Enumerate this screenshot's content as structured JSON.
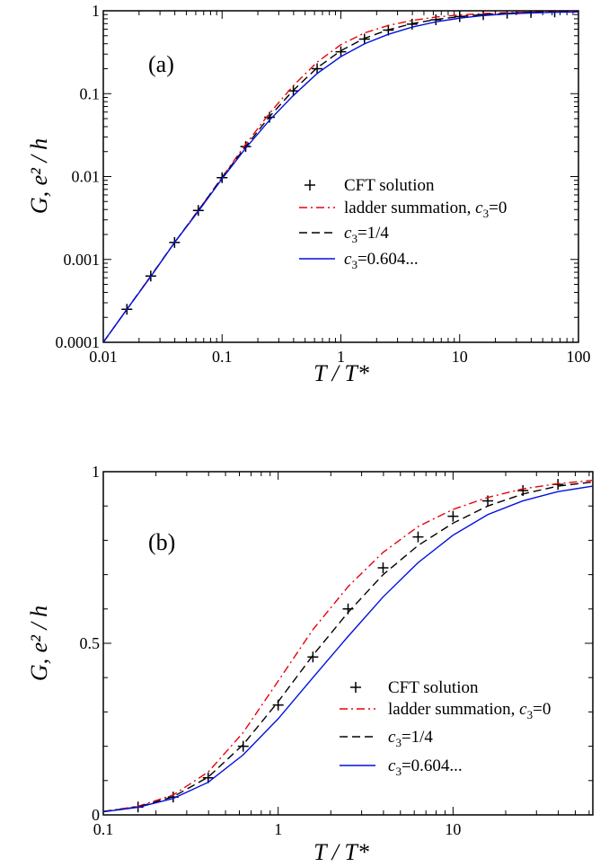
{
  "chart_data": [
    {
      "type": "line",
      "panel_label": "(a)",
      "xlabel": "T / T*",
      "ylabel": "G, e² / h",
      "x_scale": "log",
      "y_scale": "log",
      "xlim": [
        0.01,
        100
      ],
      "ylim": [
        0.0001,
        1
      ],
      "x_ticks": [
        0.01,
        0.1,
        1,
        10,
        100
      ],
      "x_tick_labels": [
        "0.01",
        "0.1",
        "1",
        "10",
        "100"
      ],
      "y_ticks": [
        0.0001,
        0.001,
        0.01,
        0.1,
        1
      ],
      "y_tick_labels": [
        "0.0001",
        "0.001",
        "0.01",
        "0.1",
        "1"
      ],
      "legend_position": "center-right",
      "series": [
        {
          "name": "CFT solution",
          "style": "plus",
          "color": "#000000",
          "points": [
            [
              0.0158,
              0.00025
            ],
            [
              0.0251,
              0.00063
            ],
            [
              0.0398,
              0.0016
            ],
            [
              0.0631,
              0.0039
            ],
            [
              0.1,
              0.0097
            ],
            [
              0.158,
              0.023
            ],
            [
              0.251,
              0.052
            ],
            [
              0.398,
              0.108
            ],
            [
              0.631,
              0.2
            ],
            [
              1.0,
              0.32
            ],
            [
              1.58,
              0.455
            ],
            [
              2.51,
              0.585
            ],
            [
              3.98,
              0.69
            ],
            [
              6.31,
              0.78
            ],
            [
              10,
              0.85
            ],
            [
              15.8,
              0.9
            ],
            [
              25.1,
              0.935
            ],
            [
              39.8,
              0.955
            ],
            [
              63.1,
              0.97
            ]
          ]
        },
        {
          "name": "ladder summation, c3=0",
          "style": "dashdot",
          "color": "#e8000b",
          "points": [
            [
              0.01,
              0.0001
            ],
            [
              0.0158,
              0.00025
            ],
            [
              0.0251,
              0.00063
            ],
            [
              0.0398,
              0.0016
            ],
            [
              0.0631,
              0.0039
            ],
            [
              0.1,
              0.0098
            ],
            [
              0.158,
              0.0245
            ],
            [
              0.251,
              0.058
            ],
            [
              0.398,
              0.125
            ],
            [
              0.631,
              0.24
            ],
            [
              1.0,
              0.39
            ],
            [
              1.58,
              0.54
            ],
            [
              2.51,
              0.665
            ],
            [
              3.98,
              0.765
            ],
            [
              6.31,
              0.84
            ],
            [
              10,
              0.89
            ],
            [
              15.8,
              0.925
            ],
            [
              25.1,
              0.95
            ],
            [
              39.8,
              0.965
            ],
            [
              63.1,
              0.975
            ],
            [
              100,
              0.982
            ]
          ]
        },
        {
          "name": "c3=1/4",
          "style": "dashed",
          "color": "#000000",
          "points": [
            [
              0.01,
              0.0001
            ],
            [
              0.0158,
              0.00025
            ],
            [
              0.0251,
              0.00063
            ],
            [
              0.0398,
              0.0016
            ],
            [
              0.0631,
              0.0039
            ],
            [
              0.1,
              0.0097
            ],
            [
              0.158,
              0.023
            ],
            [
              0.251,
              0.053
            ],
            [
              0.398,
              0.11
            ],
            [
              0.631,
              0.205
            ],
            [
              1.0,
              0.33
            ],
            [
              1.58,
              0.465
            ],
            [
              2.51,
              0.59
            ],
            [
              3.98,
              0.7
            ],
            [
              6.31,
              0.785
            ],
            [
              10,
              0.85
            ],
            [
              15.8,
              0.9
            ],
            [
              25.1,
              0.935
            ],
            [
              39.8,
              0.958
            ],
            [
              63.1,
              0.97
            ],
            [
              100,
              0.978
            ]
          ]
        },
        {
          "name": "c3=0.604...",
          "style": "solid",
          "color": "#0010e0",
          "points": [
            [
              0.01,
              0.0001
            ],
            [
              0.0158,
              0.00025
            ],
            [
              0.0251,
              0.00062
            ],
            [
              0.0398,
              0.0016
            ],
            [
              0.0631,
              0.0038
            ],
            [
              0.1,
              0.0094
            ],
            [
              0.158,
              0.022
            ],
            [
              0.251,
              0.048
            ],
            [
              0.398,
              0.095
            ],
            [
              0.631,
              0.175
            ],
            [
              1.0,
              0.28
            ],
            [
              1.58,
              0.4
            ],
            [
              2.51,
              0.52
            ],
            [
              3.98,
              0.635
            ],
            [
              6.31,
              0.735
            ],
            [
              10,
              0.815
            ],
            [
              15.8,
              0.875
            ],
            [
              25.1,
              0.915
            ],
            [
              39.8,
              0.942
            ],
            [
              63.1,
              0.958
            ],
            [
              100,
              0.968
            ]
          ]
        }
      ]
    },
    {
      "type": "line",
      "panel_label": "(b)",
      "xlabel": "T / T*",
      "ylabel": "G, e² / h",
      "x_scale": "log",
      "y_scale": "linear",
      "xlim": [
        0.1,
        63
      ],
      "ylim": [
        0,
        1
      ],
      "x_ticks": [
        0.1,
        1,
        10
      ],
      "x_tick_labels": [
        "0.1",
        "1",
        "10"
      ],
      "y_ticks": [
        0,
        0.5,
        1
      ],
      "y_tick_labels": [
        "0",
        "0.5",
        "1"
      ],
      "legend_position": "lower-right",
      "series": [
        {
          "name": "CFT solution",
          "style": "plus",
          "color": "#000000",
          "points": [
            [
              0.158,
              0.023
            ],
            [
              0.251,
              0.052
            ],
            [
              0.398,
              0.108
            ],
            [
              0.631,
              0.2
            ],
            [
              1.0,
              0.32
            ],
            [
              1.58,
              0.46
            ],
            [
              2.51,
              0.6
            ],
            [
              3.98,
              0.72
            ],
            [
              6.31,
              0.81
            ],
            [
              10,
              0.87
            ],
            [
              15.8,
              0.915
            ],
            [
              25.1,
              0.945
            ],
            [
              39.8,
              0.963
            ]
          ]
        },
        {
          "name": "ladder summation, c3=0",
          "style": "dashdot",
          "color": "#e8000b",
          "points": [
            [
              0.1,
              0.01
            ],
            [
              0.158,
              0.025
            ],
            [
              0.251,
              0.058
            ],
            [
              0.398,
              0.125
            ],
            [
              0.631,
              0.24
            ],
            [
              1.0,
              0.39
            ],
            [
              1.58,
              0.54
            ],
            [
              2.51,
              0.665
            ],
            [
              3.98,
              0.765
            ],
            [
              6.31,
              0.84
            ],
            [
              10,
              0.89
            ],
            [
              15.8,
              0.925
            ],
            [
              25.1,
              0.95
            ],
            [
              39.8,
              0.965
            ],
            [
              63,
              0.975
            ]
          ]
        },
        {
          "name": "c3=1/4",
          "style": "dashed",
          "color": "#000000",
          "points": [
            [
              0.1,
              0.01
            ],
            [
              0.158,
              0.023
            ],
            [
              0.251,
              0.053
            ],
            [
              0.398,
              0.11
            ],
            [
              0.631,
              0.205
            ],
            [
              1.0,
              0.33
            ],
            [
              1.58,
              0.465
            ],
            [
              2.51,
              0.59
            ],
            [
              3.98,
              0.7
            ],
            [
              6.31,
              0.785
            ],
            [
              10,
              0.85
            ],
            [
              15.8,
              0.9
            ],
            [
              25.1,
              0.935
            ],
            [
              39.8,
              0.958
            ],
            [
              63,
              0.97
            ]
          ]
        },
        {
          "name": "c3=0.604...",
          "style": "solid",
          "color": "#0010e0",
          "points": [
            [
              0.1,
              0.009
            ],
            [
              0.158,
              0.022
            ],
            [
              0.251,
              0.048
            ],
            [
              0.398,
              0.095
            ],
            [
              0.631,
              0.175
            ],
            [
              1.0,
              0.28
            ],
            [
              1.58,
              0.4
            ],
            [
              2.51,
              0.52
            ],
            [
              3.98,
              0.635
            ],
            [
              6.31,
              0.735
            ],
            [
              10,
              0.815
            ],
            [
              15.8,
              0.875
            ],
            [
              25.1,
              0.915
            ],
            [
              39.8,
              0.942
            ],
            [
              63,
              0.958
            ]
          ]
        }
      ]
    }
  ]
}
